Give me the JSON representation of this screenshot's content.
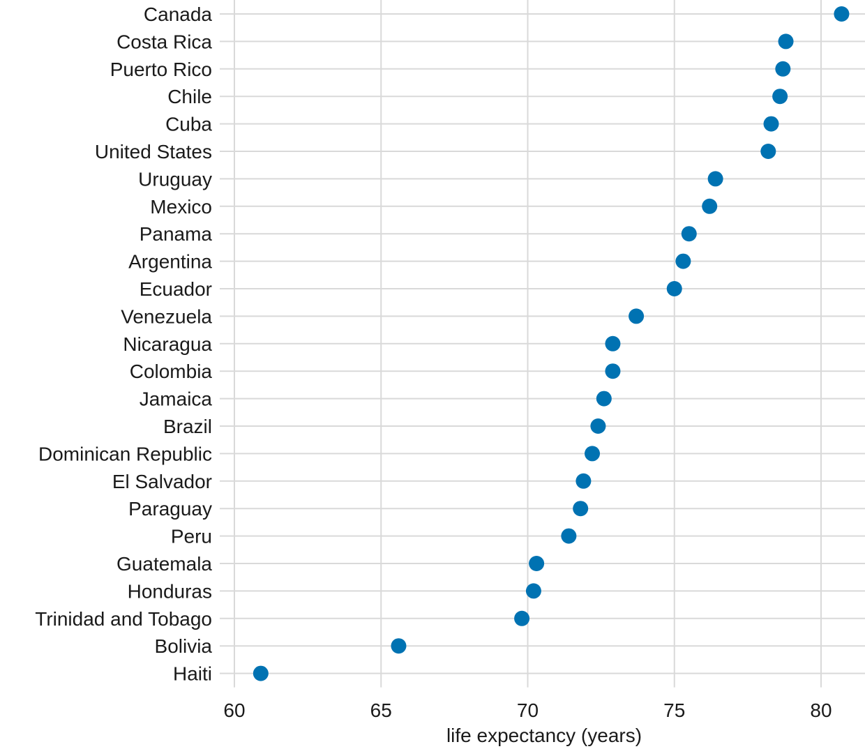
{
  "chart_data": {
    "type": "scatter",
    "style": "dot-plot",
    "title": "",
    "xlabel": "life expectancy (years)",
    "ylabel": "",
    "xlim": [
      60,
      81.5
    ],
    "xticks": [
      60,
      65,
      70,
      75,
      80
    ],
    "tick_labels": [
      "60",
      "65",
      "70",
      "75",
      "80"
    ],
    "grid": true,
    "legend": "none",
    "point_color": "#0072B2",
    "gridline_color": "#d9d9d9",
    "categories": [
      "Canada",
      "Costa Rica",
      "Puerto Rico",
      "Chile",
      "Cuba",
      "United States",
      "Uruguay",
      "Mexico",
      "Panama",
      "Argentina",
      "Ecuador",
      "Venezuela",
      "Nicaragua",
      "Colombia",
      "Jamaica",
      "Brazil",
      "Dominican Republic",
      "El Salvador",
      "Paraguay",
      "Peru",
      "Guatemala",
      "Honduras",
      "Trinidad and Tobago",
      "Bolivia",
      "Haiti"
    ],
    "values": [
      80.7,
      78.8,
      78.7,
      78.6,
      78.3,
      78.2,
      76.4,
      76.2,
      75.5,
      75.3,
      75.0,
      73.7,
      72.9,
      72.9,
      72.6,
      72.4,
      72.2,
      71.9,
      71.8,
      71.4,
      70.3,
      70.2,
      69.8,
      65.6,
      60.9
    ]
  }
}
